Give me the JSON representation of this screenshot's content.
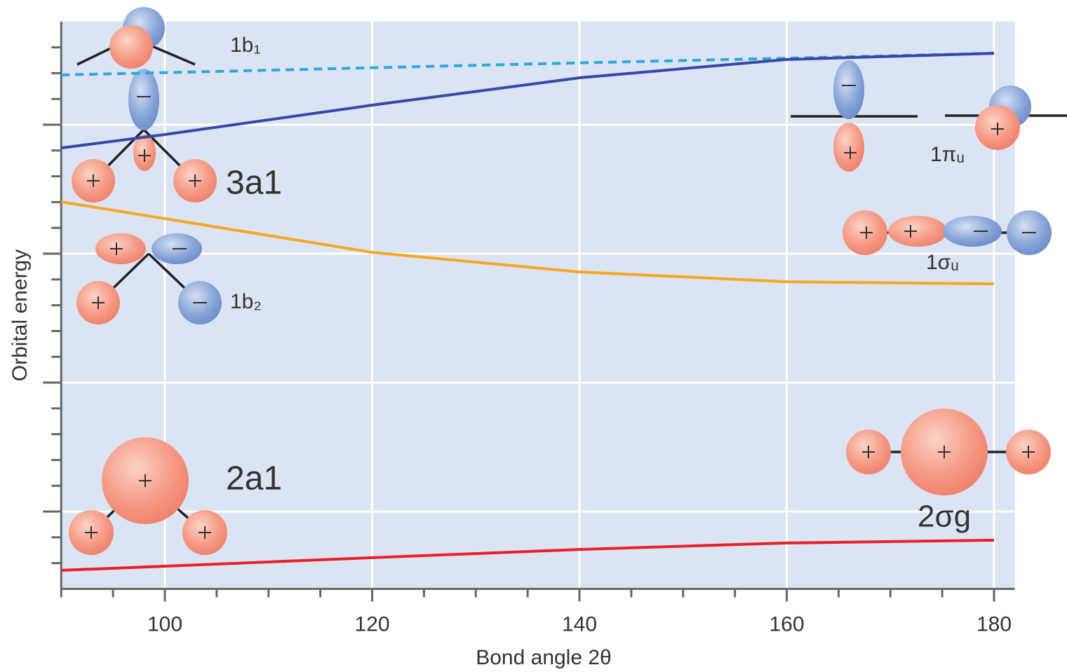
{
  "chart_data": {
    "type": "line",
    "xlabel": "Bond angle 2θ",
    "ylabel": "Orbital energy",
    "x": [
      90,
      100,
      120,
      140,
      160,
      180
    ],
    "series": [
      {
        "name": "1b₁",
        "color": "#29a8e0",
        "linestyle": "dashed",
        "values": [
          21.93,
          22.02,
          22.21,
          22.4,
          22.58,
          22.77
        ]
      },
      {
        "name": "3a1",
        "color": "#3548a8",
        "linestyle": "solid",
        "values": [
          19.1,
          19.62,
          20.76,
          21.82,
          22.53,
          22.77
        ]
      },
      {
        "name": "1b₂",
        "color": "#f5a623",
        "linestyle": "solid",
        "values": [
          17.01,
          16.36,
          15.05,
          14.29,
          13.91,
          13.83
        ]
      },
      {
        "name": "2a1",
        "color": "#e8202a",
        "linestyle": "solid",
        "values": [
          2.72,
          2.88,
          3.21,
          3.53,
          3.78,
          3.89
        ]
      }
    ],
    "annotations": [
      "1πᵤ",
      "1σᵤ",
      "2σg"
    ],
    "xlim": [
      90,
      182
    ],
    "ylim": [
      2,
      24
    ],
    "xticks": [
      100,
      120,
      140,
      160,
      180
    ],
    "xminorticks": [
      90,
      95,
      100,
      105,
      110,
      115,
      120,
      125,
      130,
      135,
      140,
      145,
      150,
      155,
      160,
      165,
      170,
      175,
      180
    ],
    "yticks": [
      5,
      10,
      15,
      20
    ],
    "yminorticks": [
      3,
      4,
      5,
      6,
      7,
      8,
      9,
      10,
      11,
      12,
      13,
      14,
      15,
      16,
      17,
      18,
      19,
      20,
      21,
      22,
      23
    ],
    "grid": true,
    "background": "#dbe4f3"
  }
}
